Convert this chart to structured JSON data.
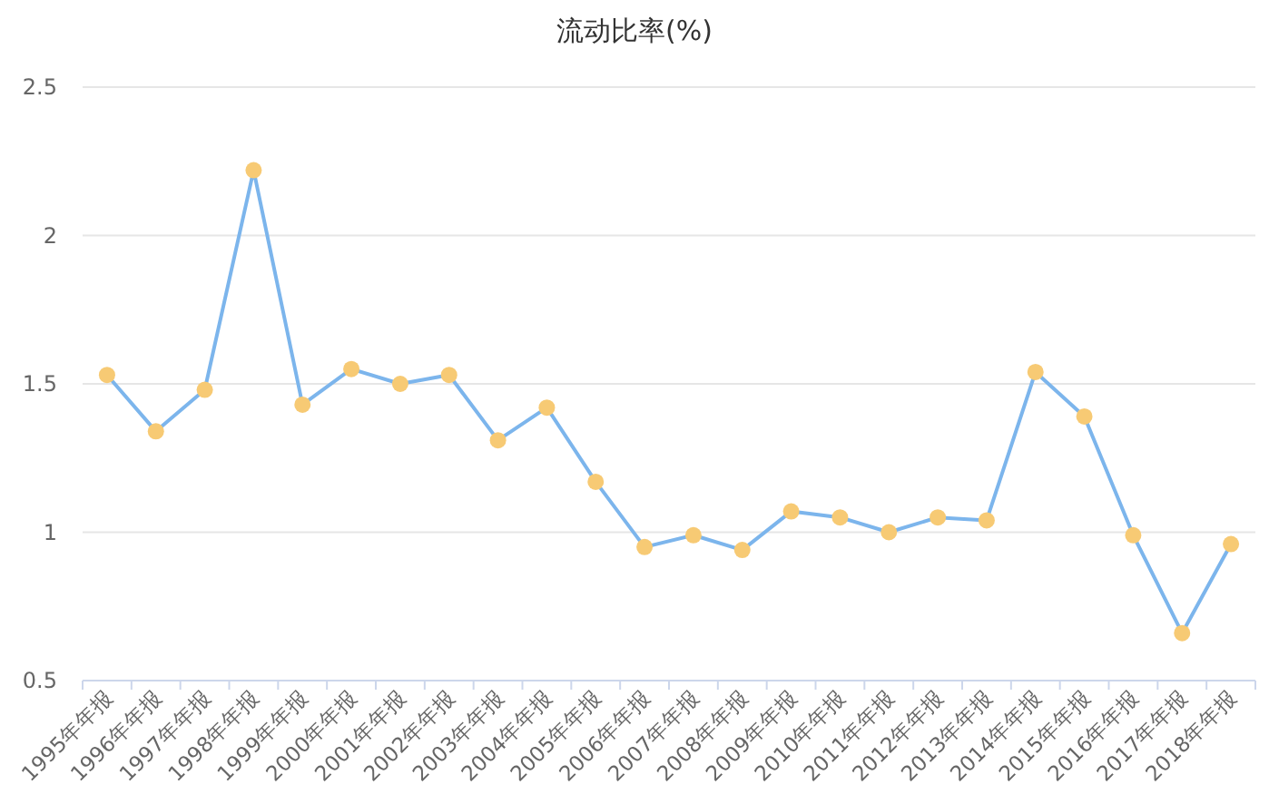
{
  "chart_data": {
    "type": "line",
    "title": "流动比率(%)",
    "categories": [
      "1995年年报",
      "1996年年报",
      "1997年年报",
      "1998年年报",
      "1999年年报",
      "2000年年报",
      "2001年年报",
      "2002年年报",
      "2003年年报",
      "2004年年报",
      "2005年年报",
      "2006年年报",
      "2007年年报",
      "2008年年报",
      "2009年年报",
      "2010年年报",
      "2011年年报",
      "2012年年报",
      "2013年年报",
      "2014年年报",
      "2015年年报",
      "2016年年报",
      "2017年年报",
      "2018年年报"
    ],
    "series": [
      {
        "color": "#7cb5ec",
        "colors": [
          "#f7ca74",
          "#f7ca74",
          "#f7ca74",
          "#f7ca74",
          "#f7ca74",
          "#f7ca74",
          "#f7ca74",
          "#f7ca74",
          "#f7ca74",
          "#f7ca74",
          "#f7ca74",
          "#f7ca74",
          "#f7ca74",
          "#f7ca74",
          "#f7ca74",
          "#f7ca74",
          "#f7ca74",
          "#f7ca74",
          "#f7ca74",
          "#f7ca74",
          "#f7ca74",
          "#f7ca74",
          "#f7ca74",
          "#f7ca74"
        ],
        "values": [
          1.53,
          1.34,
          1.48,
          2.22,
          1.43,
          1.55,
          1.5,
          1.53,
          1.31,
          1.42,
          1.17,
          0.95,
          0.99,
          0.94,
          1.07,
          1.05,
          1.0,
          1.05,
          1.04,
          1.54,
          1.39,
          0.99,
          0.66,
          0.96
        ]
      }
    ],
    "ylim": [
      0.5,
      2.5
    ],
    "yticks": [
      0.5,
      1,
      1.5,
      2,
      2.5
    ],
    "grid": "y",
    "marker": "circle",
    "line_style": "solid"
  }
}
